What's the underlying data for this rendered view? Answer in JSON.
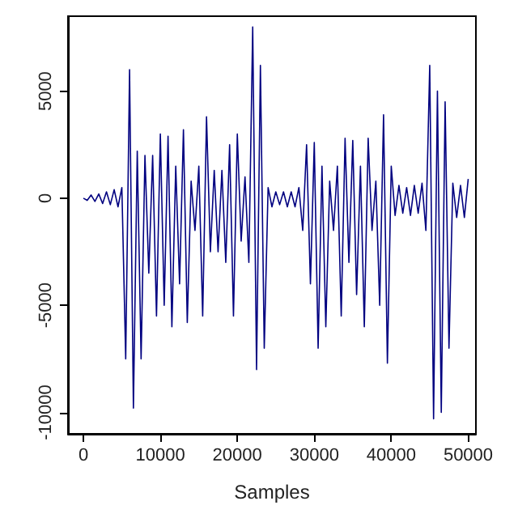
{
  "chart_data": {
    "type": "line",
    "xlabel": "Samples",
    "color": "#000080",
    "marker": "none",
    "line_style": "solid",
    "xlim": [
      -2000,
      51000
    ],
    "xticks": [
      0,
      10000,
      20000,
      30000,
      40000,
      50000
    ],
    "ylim": [
      -11000,
      8500
    ],
    "yticks": [
      -10000,
      -5000,
      0,
      5000
    ],
    "x": [
      0,
      500,
      1000,
      1500,
      2000,
      2500,
      3000,
      3500,
      4000,
      4500,
      5000,
      5500,
      6000,
      6500,
      7000,
      7500,
      8000,
      8500,
      9000,
      9500,
      10000,
      10500,
      11000,
      11500,
      12000,
      12500,
      13000,
      13500,
      14000,
      14500,
      15000,
      15500,
      16000,
      16500,
      17000,
      17500,
      18000,
      18500,
      19000,
      19500,
      20000,
      20500,
      21000,
      21500,
      22000,
      22500,
      23000,
      23500,
      24000,
      24500,
      25000,
      25500,
      26000,
      26500,
      27000,
      27500,
      28000,
      28500,
      29000,
      29500,
      30000,
      30500,
      31000,
      31500,
      32000,
      32500,
      33000,
      33500,
      34000,
      34500,
      35000,
      35500,
      36000,
      36500,
      37000,
      37500,
      38000,
      38500,
      39000,
      39500,
      40000,
      40500,
      41000,
      41500,
      42000,
      42500,
      43000,
      43500,
      44000,
      44500,
      45000,
      45500,
      46000,
      46500,
      47000,
      47500,
      48000,
      48500,
      49000,
      49500,
      50000
    ],
    "values": [
      0,
      -100,
      150,
      -150,
      200,
      -250,
      300,
      -300,
      400,
      -400,
      500,
      -7500,
      6000,
      -9800,
      2200,
      -7500,
      2000,
      -3500,
      2000,
      -5500,
      3000,
      -5000,
      2900,
      -6000,
      1500,
      -4000,
      3200,
      -5800,
      800,
      -1500,
      1500,
      -5500,
      3800,
      -2500,
      1300,
      -2500,
      1300,
      -3000,
      2500,
      -5500,
      3000,
      -2000,
      1000,
      -3000,
      8000,
      -8000,
      6200,
      -7000,
      500,
      -400,
      300,
      -300,
      300,
      -400,
      300,
      -400,
      500,
      -1500,
      2500,
      -4000,
      2600,
      -7000,
      1500,
      -6000,
      800,
      -1500,
      1500,
      -5500,
      2800,
      -3000,
      2700,
      -4500,
      1500,
      -6000,
      2800,
      -1500,
      800,
      -5000,
      3900,
      -7700,
      1500,
      -800,
      600,
      -700,
      500,
      -800,
      600,
      -700,
      700,
      -1500,
      6200,
      -10300,
      5000,
      -10000,
      4500,
      -7000,
      700,
      -900,
      600,
      -900,
      900
    ]
  }
}
